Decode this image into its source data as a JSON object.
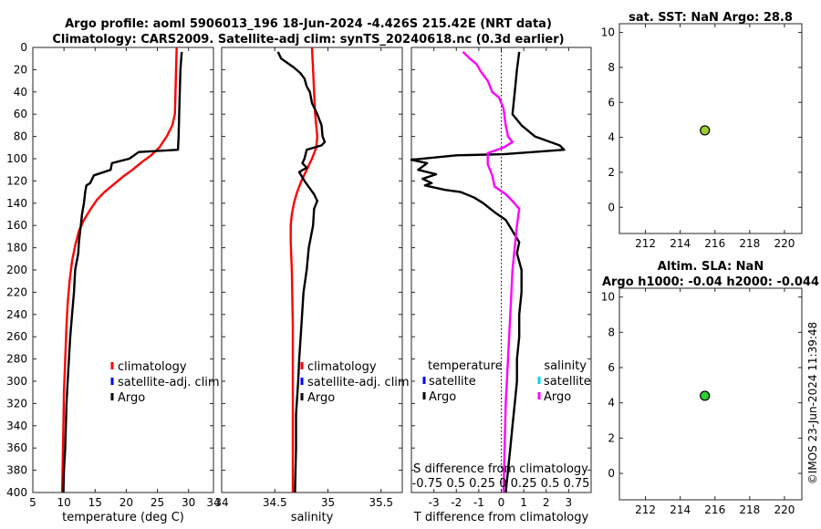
{
  "colors": {
    "climatology": "#ff0000",
    "satellite": "#0000ff",
    "argo": "#000000",
    "salinity_diff": "#ff00ff",
    "satellite_s": "#00d8e0",
    "marker_sst": "#9acd32",
    "marker_sla": "#32cd32"
  },
  "header": {
    "line1": "Argo profile: aoml 5906013_196 18-Jun-2024 -4.426S 215.42E (NRT data)",
    "line2": "Climatology: CARS2009. Satellite-adj clim: synTS_20240618.nc (0.3d earlier)"
  },
  "watermark": "©IMOS 23-Jun-2024 11:39:48",
  "chart_data": [
    {
      "type": "line",
      "id": "temperature",
      "xlabel": "temperature (deg C)",
      "xlim": [
        5,
        34
      ],
      "xticks": [
        5,
        10,
        15,
        20,
        25,
        30,
        34
      ],
      "ylim": [
        400,
        0
      ],
      "yticks": [
        0,
        20,
        40,
        60,
        80,
        100,
        120,
        140,
        160,
        180,
        200,
        220,
        240,
        260,
        280,
        300,
        320,
        340,
        360,
        380,
        400
      ],
      "legend": [
        "climatology",
        "satellite-adj. clim",
        "Argo"
      ],
      "series": [
        {
          "name": "climatology",
          "color": "#ff0000",
          "points": [
            [
              28.1,
              0
            ],
            [
              28.0,
              20
            ],
            [
              27.9,
              40
            ],
            [
              27.8,
              60
            ],
            [
              27.4,
              70
            ],
            [
              26.5,
              80
            ],
            [
              25.3,
              90
            ],
            [
              24.0,
              97
            ],
            [
              22.5,
              103
            ],
            [
              21.0,
              110
            ],
            [
              19.5,
              116
            ],
            [
              18.0,
              123
            ],
            [
              16.5,
              130
            ],
            [
              15.3,
              137
            ],
            [
              14.2,
              146
            ],
            [
              13.2,
              155
            ],
            [
              12.4,
              165
            ],
            [
              11.8,
              178
            ],
            [
              11.3,
              192
            ],
            [
              10.9,
              210
            ],
            [
              10.6,
              230
            ],
            [
              10.4,
              250
            ],
            [
              10.2,
              280
            ],
            [
              10.0,
              310
            ],
            [
              9.9,
              340
            ],
            [
              9.8,
              370
            ],
            [
              9.7,
              400
            ]
          ]
        },
        {
          "name": "Argo",
          "color": "#000000",
          "points": [
            [
              28.9,
              4
            ],
            [
              28.7,
              20
            ],
            [
              28.6,
              40
            ],
            [
              28.5,
              60
            ],
            [
              28.4,
              80
            ],
            [
              28.3,
              92
            ],
            [
              22.0,
              94
            ],
            [
              20.5,
              100
            ],
            [
              17.7,
              104
            ],
            [
              17.5,
              110
            ],
            [
              14.8,
              115
            ],
            [
              14.2,
              122
            ],
            [
              13.6,
              124
            ],
            [
              13.4,
              130
            ],
            [
              13.2,
              140
            ],
            [
              12.9,
              150
            ],
            [
              12.7,
              160
            ],
            [
              12.4,
              175
            ],
            [
              12.3,
              185
            ],
            [
              11.8,
              200
            ],
            [
              11.6,
              220
            ],
            [
              11.3,
              240
            ],
            [
              11.0,
              260
            ],
            [
              10.8,
              280
            ],
            [
              10.6,
              300
            ],
            [
              10.4,
              320
            ],
            [
              10.3,
              340
            ],
            [
              10.2,
              360
            ],
            [
              10.0,
              380
            ],
            [
              9.9,
              400
            ]
          ]
        }
      ]
    },
    {
      "type": "line",
      "id": "salinity",
      "xlabel": "salinity",
      "xlim": [
        34,
        35.7
      ],
      "xticks": [
        34,
        34.5,
        35,
        35.5
      ],
      "ylim": [
        400,
        0
      ],
      "legend": [
        "climatology",
        "satellite-adj. clim",
        "Argo"
      ],
      "series": [
        {
          "name": "climatology",
          "color": "#ff0000",
          "points": [
            [
              34.85,
              0
            ],
            [
              34.86,
              20
            ],
            [
              34.87,
              40
            ],
            [
              34.88,
              60
            ],
            [
              34.9,
              80
            ],
            [
              34.89,
              90
            ],
            [
              34.85,
              100
            ],
            [
              34.8,
              110
            ],
            [
              34.75,
              120
            ],
            [
              34.71,
              130
            ],
            [
              34.68,
              140
            ],
            [
              34.66,
              150
            ],
            [
              34.65,
              160
            ],
            [
              34.65,
              175
            ],
            [
              34.66,
              200
            ],
            [
              34.67,
              250
            ],
            [
              34.67,
              300
            ],
            [
              34.67,
              350
            ],
            [
              34.67,
              400
            ]
          ]
        },
        {
          "name": "Argo",
          "color": "#000000",
          "points": [
            [
              34.53,
              4
            ],
            [
              34.56,
              10
            ],
            [
              34.62,
              14
            ],
            [
              34.68,
              18
            ],
            [
              34.74,
              23
            ],
            [
              34.78,
              28
            ],
            [
              34.8,
              35
            ],
            [
              34.83,
              40
            ],
            [
              34.85,
              50
            ],
            [
              34.9,
              60
            ],
            [
              34.94,
              70
            ],
            [
              34.95,
              80
            ],
            [
              34.97,
              85
            ],
            [
              34.94,
              88
            ],
            [
              34.8,
              92
            ],
            [
              34.78,
              100
            ],
            [
              34.76,
              104
            ],
            [
              34.8,
              108
            ],
            [
              34.73,
              112
            ],
            [
              34.78,
              120
            ],
            [
              34.84,
              128
            ],
            [
              34.87,
              132
            ],
            [
              34.9,
              138
            ],
            [
              34.87,
              145
            ],
            [
              34.86,
              160
            ],
            [
              34.82,
              180
            ],
            [
              34.8,
              200
            ],
            [
              34.77,
              220
            ],
            [
              34.75,
              250
            ],
            [
              34.73,
              280
            ],
            [
              34.72,
              300
            ],
            [
              34.7,
              330
            ],
            [
              34.7,
              360
            ],
            [
              34.69,
              400
            ]
          ]
        }
      ]
    },
    {
      "type": "line",
      "id": "difference",
      "xlabel": "T difference from climatology",
      "xlim": [
        -4,
        4
      ],
      "xticks": [
        -3,
        -2,
        -1,
        0,
        1,
        2,
        3
      ],
      "top_label": "S difference from climatology",
      "top_ticks": "-0.75 0.5 0.25  0  0.25 0.5 0.75",
      "ylim": [
        400,
        0
      ],
      "legend_temperature": [
        "temperature",
        "satellite",
        "Argo"
      ],
      "legend_salinity": [
        "salinity",
        "satellite",
        "Argo"
      ],
      "series": [
        {
          "name": "T difference",
          "color": "#000000",
          "points": [
            [
              0.8,
              4
            ],
            [
              0.7,
              20
            ],
            [
              0.6,
              40
            ],
            [
              0.5,
              60
            ],
            [
              0.9,
              70
            ],
            [
              1.5,
              80
            ],
            [
              2.6,
              88
            ],
            [
              2.8,
              92
            ],
            [
              0.1,
              96
            ],
            [
              -2.0,
              97
            ],
            [
              -4.0,
              101
            ],
            [
              -3.3,
              104
            ],
            [
              -3.7,
              110
            ],
            [
              -2.9,
              114
            ],
            [
              -3.5,
              118
            ],
            [
              -3.1,
              122
            ],
            [
              -3.4,
              124
            ],
            [
              -2.5,
              128
            ],
            [
              -1.8,
              130
            ],
            [
              -1.2,
              135
            ],
            [
              -0.8,
              140
            ],
            [
              -0.3,
              148
            ],
            [
              0.2,
              155
            ],
            [
              0.5,
              165
            ],
            [
              0.8,
              175
            ],
            [
              0.7,
              185
            ],
            [
              0.9,
              200
            ],
            [
              0.9,
              220
            ],
            [
              0.8,
              240
            ],
            [
              0.8,
              260
            ],
            [
              0.7,
              280
            ],
            [
              0.7,
              300
            ],
            [
              0.6,
              320
            ],
            [
              0.5,
              340
            ],
            [
              0.4,
              360
            ],
            [
              0.3,
              380
            ],
            [
              0.2,
              400
            ]
          ]
        },
        {
          "name": "S difference",
          "color": "#ff00ff",
          "points": [
            [
              -1.7,
              4
            ],
            [
              -1.4,
              10
            ],
            [
              -1.1,
              15
            ],
            [
              -0.9,
              22
            ],
            [
              -0.6,
              30
            ],
            [
              -0.4,
              40
            ],
            [
              -0.1,
              45
            ],
            [
              0.1,
              55
            ],
            [
              0.2,
              70
            ],
            [
              0.3,
              80
            ],
            [
              0.5,
              85
            ],
            [
              0.1,
              90
            ],
            [
              -0.6,
              95
            ],
            [
              -0.6,
              105
            ],
            [
              -0.4,
              115
            ],
            [
              -0.3,
              125
            ],
            [
              0.2,
              132
            ],
            [
              0.5,
              138
            ],
            [
              0.8,
              145
            ],
            [
              0.7,
              160
            ],
            [
              0.5,
              200
            ],
            [
              0.4,
              240
            ],
            [
              0.3,
              280
            ],
            [
              0.2,
              320
            ],
            [
              0.15,
              360
            ],
            [
              0.1,
              400
            ]
          ]
        }
      ]
    },
    {
      "type": "scatter",
      "id": "sst",
      "title": "sat. SST: NaN Argo: 28.8",
      "xlim": [
        210.5,
        221
      ],
      "xticks": [
        212,
        214,
        216,
        218,
        220
      ],
      "ylim": [
        -1.5,
        10.5
      ],
      "yticks": [
        0,
        2,
        4,
        6,
        8,
        10
      ],
      "points": [
        [
          215.42,
          4.4
        ]
      ],
      "marker_color": "#9acd32"
    },
    {
      "type": "scatter",
      "id": "sla",
      "title_line1": "Altim. SLA: NaN",
      "title_line2": "Argo h1000: -0.04 h2000: -0.044",
      "xlim": [
        210.5,
        221
      ],
      "xticks": [
        212,
        214,
        216,
        218,
        220
      ],
      "ylim": [
        -1.5,
        10.5
      ],
      "yticks": [
        0,
        2,
        4,
        6,
        8,
        10
      ],
      "points": [
        [
          215.42,
          4.4
        ]
      ],
      "marker_color": "#32cd32"
    }
  ]
}
